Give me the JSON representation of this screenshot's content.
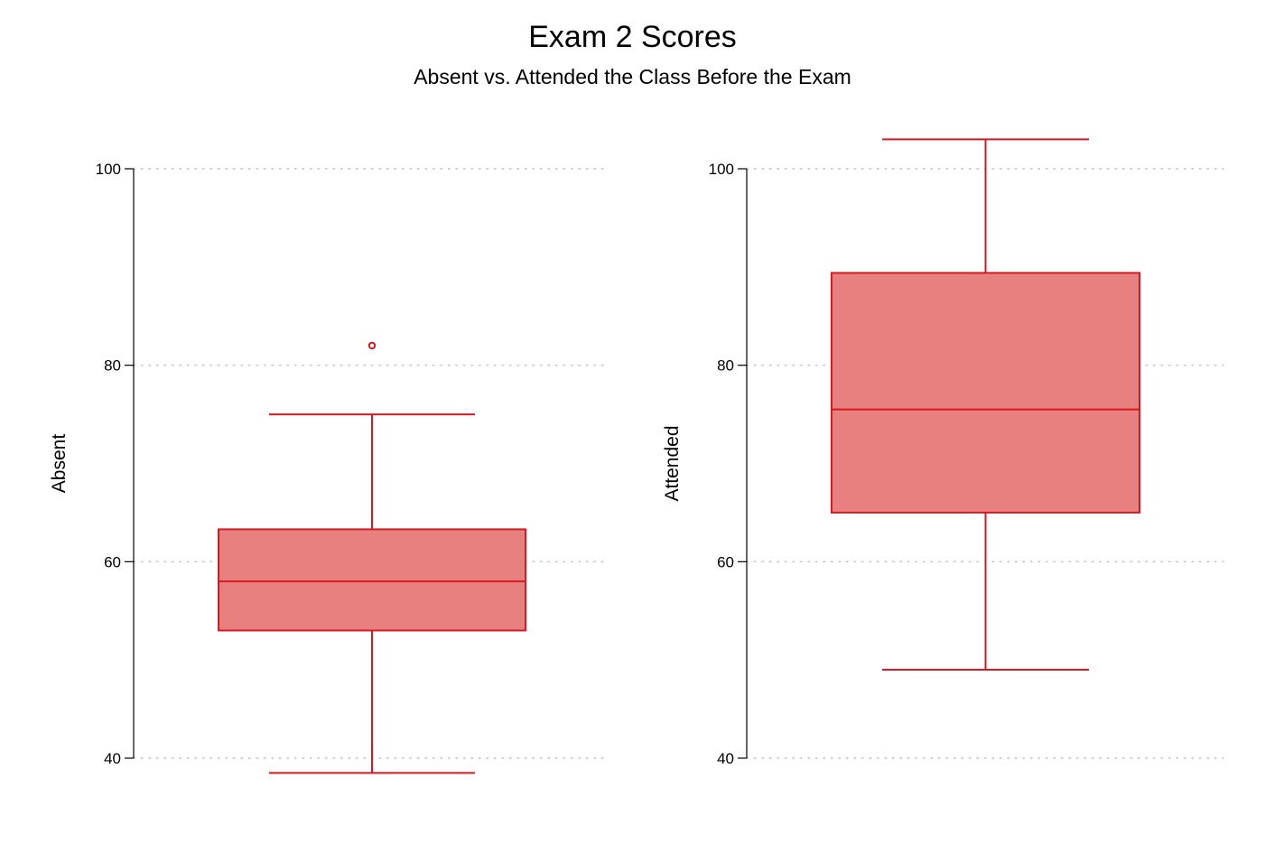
{
  "title": "Exam 2 Scores",
  "subtitle": "Absent vs. Attended the Class Before the Exam",
  "colors": {
    "box_fill": "#e98080",
    "box_stroke": "#d71920",
    "grid": "#bfbfbf",
    "axis": "#000000"
  },
  "chart_data": [
    {
      "type": "box",
      "ylabel": "Absent",
      "ylim": [
        40,
        100
      ],
      "yticks": [
        40,
        60,
        80,
        100
      ],
      "grid": "horizontal dotted",
      "whisker_low": 38.5,
      "q1": 53,
      "median": 58,
      "q3": 63.3,
      "whisker_high": 75,
      "outliers": [
        82
      ]
    },
    {
      "type": "box",
      "ylabel": "Attended",
      "ylim": [
        40,
        100
      ],
      "yticks": [
        40,
        60,
        80,
        100
      ],
      "grid": "horizontal dotted",
      "whisker_low": 49,
      "q1": 65,
      "median": 75.5,
      "q3": 89.4,
      "whisker_high": 103,
      "outliers": []
    }
  ]
}
